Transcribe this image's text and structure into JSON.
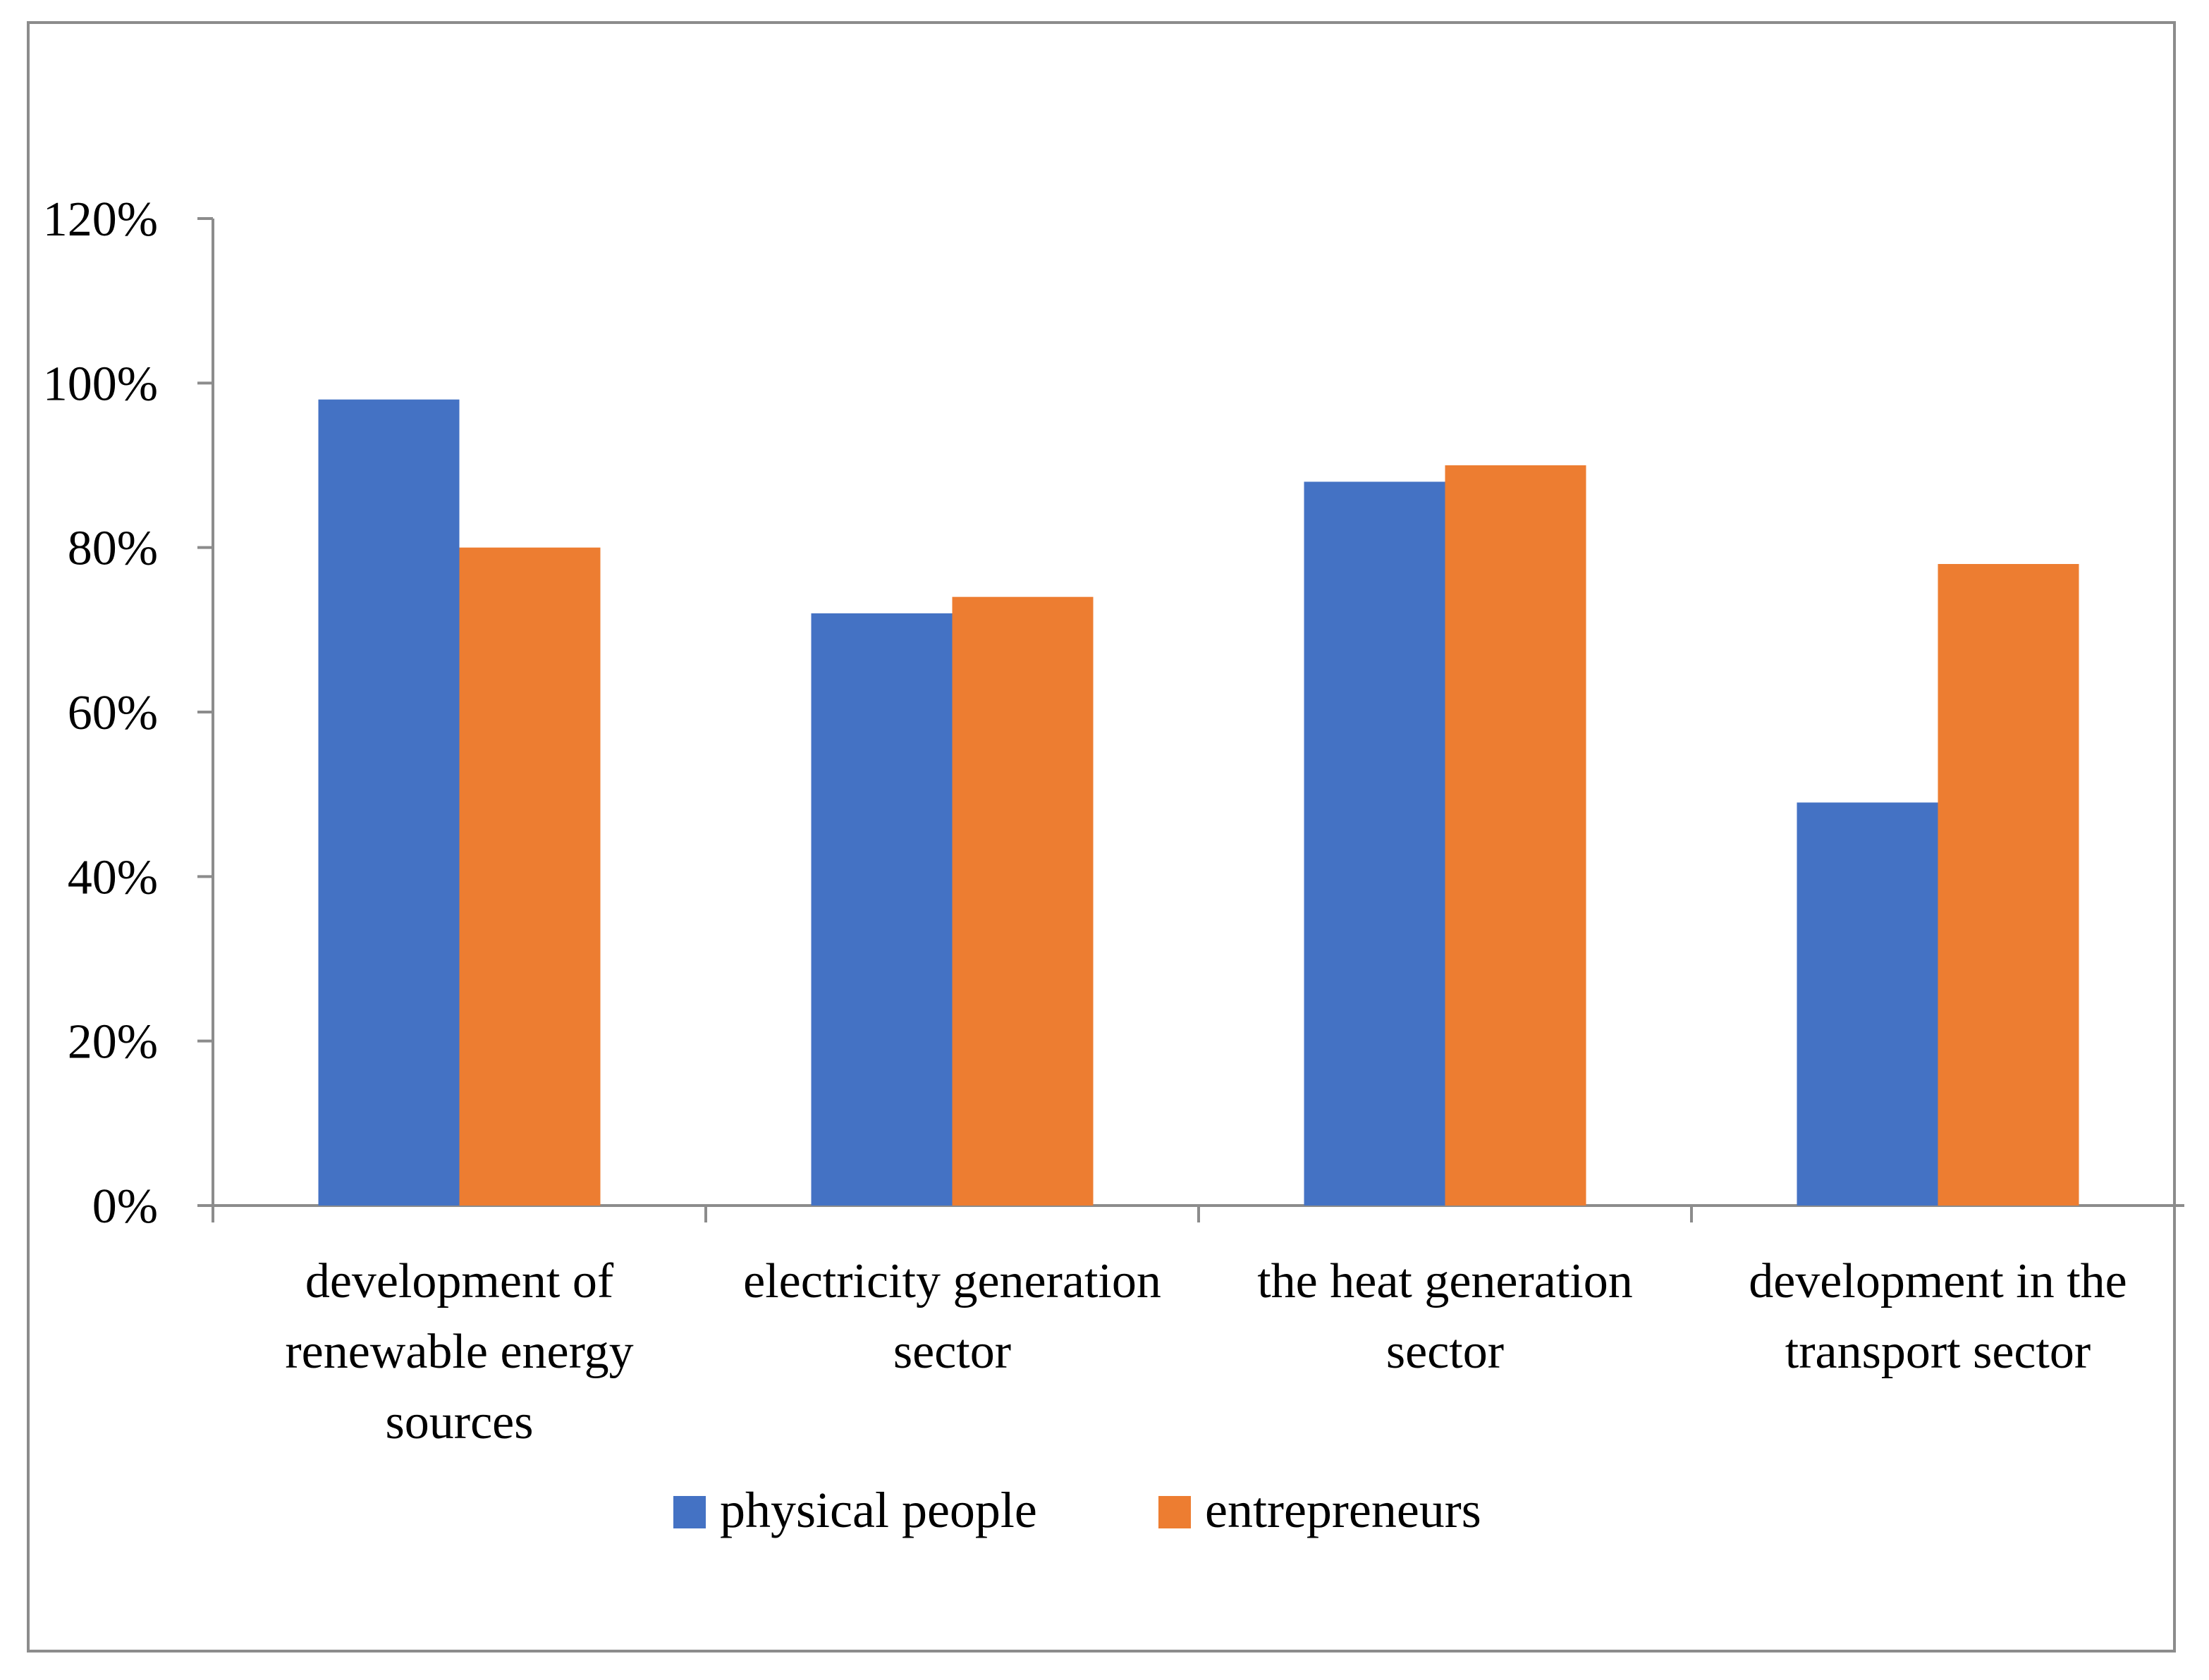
{
  "chart_data": {
    "type": "bar",
    "title": "",
    "xlabel": "",
    "ylabel": "",
    "ylim": [
      0,
      120
    ],
    "y_ticks": [
      "0%",
      "20%",
      "40%",
      "60%",
      "80%",
      "100%",
      "120%"
    ],
    "y_tick_values": [
      0,
      20,
      40,
      60,
      80,
      100,
      120
    ],
    "categories": [
      [
        "development of",
        "renewable energy",
        "sources"
      ],
      [
        "electricity generation",
        "sector"
      ],
      [
        "the heat generation",
        "sector"
      ],
      [
        "development in the",
        "transport sector"
      ]
    ],
    "series": [
      {
        "name": "physical people",
        "color": "#4472C4",
        "values": [
          98,
          72,
          88,
          49
        ]
      },
      {
        "name": "entrepreneurs",
        "color": "#ED7D31",
        "values": [
          80,
          74,
          90,
          78
        ]
      }
    ],
    "legend_position": "bottom",
    "grid": false
  }
}
